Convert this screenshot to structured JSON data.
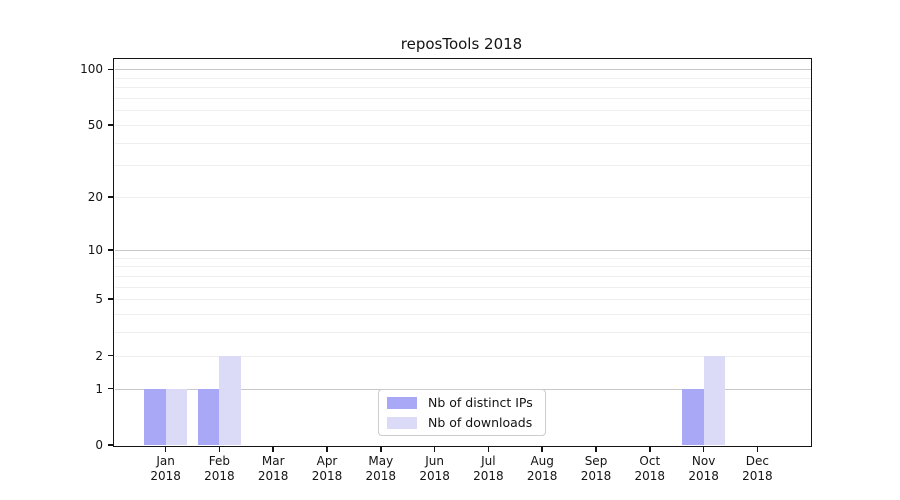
{
  "title": "reposTools 2018",
  "chart_data": {
    "type": "bar",
    "title": "reposTools 2018",
    "categories": [
      "Jan 2018",
      "Feb 2018",
      "Mar 2018",
      "Apr 2018",
      "May 2018",
      "Jun 2018",
      "Jul 2018",
      "Aug 2018",
      "Sep 2018",
      "Oct 2018",
      "Nov 2018",
      "Dec 2018"
    ],
    "series": [
      {
        "name": "Nb of distinct IPs",
        "color": "#a8a8f6",
        "values": [
          1,
          1,
          0,
          0,
          0,
          0,
          0,
          0,
          0,
          0,
          1,
          0
        ]
      },
      {
        "name": "Nb of downloads",
        "color": "#dbdbf8",
        "values": [
          1,
          2,
          0,
          0,
          0,
          0,
          0,
          0,
          0,
          0,
          2,
          0
        ]
      }
    ],
    "xlabel": "",
    "ylabel": "",
    "yscale": "log1p",
    "ylim": [
      0,
      115
    ],
    "yticks": [
      0,
      1,
      2,
      5,
      10,
      20,
      50,
      100
    ],
    "gridlines": {
      "major": [
        1,
        10,
        100
      ],
      "minor": [
        2,
        3,
        4,
        5,
        6,
        7,
        8,
        9,
        20,
        30,
        40,
        50,
        60,
        70,
        80,
        90
      ]
    },
    "legend": {
      "position": "bottom-center"
    },
    "grid": "on"
  },
  "colors": {
    "background": "#ffffff",
    "spine": "#141414",
    "grid_major": "#c8c8c8",
    "grid_minor": "#eeeeee",
    "legend_border": "#cccccc"
  }
}
